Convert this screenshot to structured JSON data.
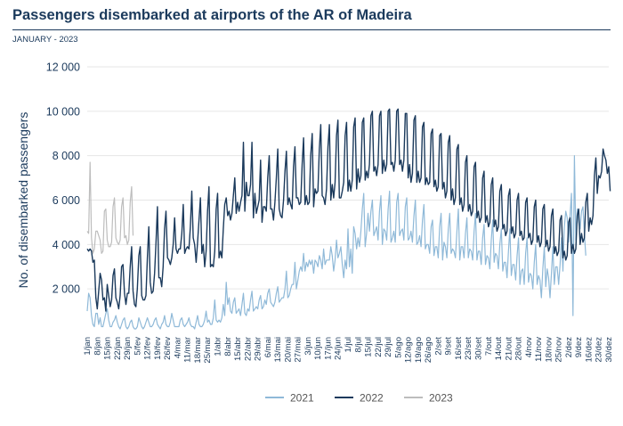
{
  "header": {
    "title": "Passengers disembarked at airports of the AR of Madeira",
    "subtitle": "JANUARY - 2023"
  },
  "colors": {
    "s2021": "#8fb9d8",
    "s2022": "#1b3a5c",
    "s2023": "#bdbdbd",
    "grid": "#e6e6e6",
    "text": "#1b3a5c"
  },
  "chart_data": {
    "type": "line",
    "title": "Passengers disembarked at airports of the AR of Madeira",
    "subtitle": "JANUARY - 2023",
    "xlabel": "",
    "ylabel": "No. of disembarked passengers",
    "ylim": [
      0,
      12000
    ],
    "yticks": [
      2000,
      4000,
      6000,
      8000,
      10000,
      12000
    ],
    "ytick_labels": [
      "2 000",
      "4 000",
      "6 000",
      "8 000",
      "10 000",
      "12 000"
    ],
    "grid": "horizontal",
    "legend": "bottom",
    "x_tick_labels": [
      "1/jan",
      "8/jan",
      "15/jan",
      "22/jan",
      "29/jan",
      "5/fev",
      "12/fev",
      "19/fev",
      "26/fev",
      "4/mar",
      "11/mar",
      "18/mar",
      "25/mar",
      "1/abr",
      "8/abr",
      "15/abr",
      "22/abr",
      "29/abr",
      "6/mai",
      "13/mai",
      "20/mai",
      "27/mai",
      "3/jun",
      "10/jun",
      "17/jun",
      "24/jun",
      "1/jul",
      "8/jul",
      "15/jul",
      "22/jul",
      "29/jul",
      "5/ago",
      "12/ago",
      "19/ago",
      "26/ago",
      "2/set",
      "9/set",
      "16/set",
      "23/set",
      "30/set",
      "7/out",
      "14/out",
      "21/out",
      "28/out",
      "4/nov",
      "11/nov",
      "18/nov",
      "25/nov",
      "2/dez",
      "9/dez",
      "16/dez",
      "23/dez",
      "30/dez"
    ],
    "x_note": "one point per day, day of year 1..365",
    "series": [
      {
        "name": "2021",
        "values": [
          1000,
          1800,
          1600,
          800,
          400,
          300,
          900,
          900,
          400,
          700,
          300,
          300,
          600,
          900,
          1100,
          600,
          300,
          300,
          500,
          600,
          800,
          500,
          300,
          200,
          400,
          600,
          700,
          300,
          200,
          300,
          500,
          600,
          300,
          200,
          200,
          300,
          700,
          500,
          300,
          200,
          300,
          500,
          700,
          500,
          300,
          300,
          400,
          600,
          700,
          400,
          300,
          200,
          400,
          500,
          800,
          400,
          300,
          300,
          500,
          900,
          600,
          300,
          300,
          300,
          300,
          600,
          700,
          400,
          300,
          400,
          500,
          700,
          400,
          300,
          300,
          200,
          500,
          800,
          400,
          300,
          300,
          400,
          600,
          1000,
          500,
          600,
          400,
          400,
          700,
          1500,
          600,
          500,
          600,
          500,
          700,
          1300,
          800,
          2300,
          1300,
          1600,
          1000,
          900,
          1400,
          1600,
          900,
          1000,
          1100,
          800,
          1300,
          1800,
          900,
          800,
          1100,
          1000,
          1500,
          1900,
          1000,
          1100,
          1200,
          1100,
          1500,
          1700,
          1100,
          1200,
          1500,
          1300,
          1800,
          2000,
          1400,
          1300,
          1200,
          1400,
          1800,
          2100,
          1400,
          1500,
          1600,
          1600,
          2000,
          2800,
          1600,
          1700,
          2000,
          2200,
          2200,
          3200,
          2000,
          2400,
          2800,
          3000,
          2800,
          3600,
          2800,
          3200,
          3000,
          3300,
          3100,
          3300,
          2700,
          3300,
          3200,
          3000,
          3500,
          3300,
          2900,
          3800,
          3100,
          3300,
          3300,
          3300,
          3900,
          3500,
          2800,
          3300,
          4200,
          3400,
          3600,
          3900,
          3100,
          2500,
          3300,
          2900,
          4700,
          3000,
          3800,
          2700,
          4800,
          4500,
          3800,
          4300,
          3900,
          4600,
          5600,
          6300,
          3900,
          4500,
          5400,
          4600,
          5500,
          6000,
          4400,
          4600,
          4800,
          4200,
          5500,
          6200,
          4000,
          4700,
          4600,
          4200,
          5600,
          6400,
          4100,
          4300,
          4600,
          4100,
          5900,
          6300,
          4400,
          4600,
          4700,
          4200,
          5700,
          6100,
          4200,
          4300,
          4600,
          4100,
          5300,
          6000,
          4000,
          4100,
          4400,
          3900,
          5100,
          5800,
          3800,
          4000,
          4000,
          3600,
          4800,
          5100,
          3500,
          3900,
          3900,
          3400,
          4800,
          5400,
          3300,
          4100,
          3900,
          3400,
          4700,
          5400,
          3600,
          3800,
          3700,
          3400,
          4600,
          5600,
          3300,
          3900,
          3900,
          3400,
          4500,
          5200,
          3400,
          3800,
          3700,
          3300,
          4600,
          5400,
          3300,
          3700,
          3700,
          3100,
          4300,
          4900,
          3100,
          3500,
          3400,
          2900,
          4200,
          5100,
          3200,
          3600,
          3500,
          2900,
          4000,
          4700,
          2800,
          3200,
          3200,
          2500,
          3700,
          4700,
          2600,
          3100,
          3100,
          2400,
          3500,
          4300,
          2200,
          2800,
          2900,
          2200,
          3600,
          4300,
          2300,
          2700,
          2600,
          2000,
          3200,
          4000,
          2200,
          2600,
          2400,
          1600,
          2900,
          3900,
          2100,
          2900,
          2500,
          1600,
          2700,
          3900,
          2200,
          3000,
          3000,
          2200,
          3100,
          4300,
          2800,
          4800,
          5500,
          5200,
          4100,
          5300,
          6300,
          800,
          8000,
          4200,
          5600,
          5000,
          4700,
          5500,
          5700,
          4500,
          3500
        ],
        "color": "#8fb9d8"
      },
      {
        "name": "2022",
        "values": [
          3800,
          3700,
          3800,
          3700,
          3200,
          3300,
          1600,
          1100,
          1900,
          2700,
          2400,
          1500,
          1600,
          1000,
          2200,
          1700,
          1200,
          1500,
          2600,
          2900,
          1600,
          1400,
          1100,
          1700,
          3000,
          3100,
          1800,
          1300,
          1800,
          1800,
          3000,
          3900,
          1900,
          1300,
          1200,
          2000,
          3500,
          3900,
          1700,
          1500,
          1500,
          1700,
          3400,
          4800,
          2300,
          1800,
          1900,
          2700,
          4100,
          5700,
          2500,
          2500,
          2100,
          3000,
          4700,
          5500,
          3400,
          3300,
          3100,
          3400,
          4000,
          5200,
          3800,
          3600,
          3800,
          3800,
          4500,
          5800,
          3600,
          3800,
          3900,
          3800,
          4800,
          6400,
          4300,
          4000,
          3200,
          4100,
          5100,
          6100,
          3600,
          4000,
          3000,
          3700,
          5500,
          6600,
          3000,
          3100,
          3000,
          3700,
          5600,
          6300,
          3400,
          3700,
          3400,
          4700,
          5800,
          6100,
          5300,
          5500,
          5100,
          5400,
          6200,
          7000,
          5400,
          5900,
          5500,
          5900,
          6200,
          8600,
          5500,
          6800,
          6200,
          6200,
          6700,
          8600,
          5200,
          6300,
          5400,
          5700,
          6000,
          7800,
          5000,
          5700,
          5700,
          5500,
          7000,
          8000,
          5600,
          5600,
          5100,
          5900,
          7000,
          8300,
          5600,
          5300,
          5200,
          6000,
          7300,
          8200,
          5800,
          6100,
          5800,
          5600,
          7500,
          8400,
          6100,
          6100,
          5800,
          5900,
          7600,
          8800,
          5800,
          6200,
          5800,
          5900,
          8000,
          9000,
          5700,
          6500,
          6300,
          6400,
          8300,
          9400,
          6200,
          6100,
          5800,
          6500,
          8400,
          9400,
          6000,
          6700,
          6100,
          6800,
          8900,
          9600,
          6100,
          6100,
          6400,
          6800,
          8900,
          9500,
          6400,
          6900,
          6400,
          6900,
          9300,
          9700,
          6500,
          7400,
          6800,
          7100,
          9500,
          9700,
          6900,
          7300,
          7000,
          7600,
          9800,
          10000,
          7300,
          7500,
          7100,
          7600,
          9800,
          10000,
          7200,
          7800,
          7300,
          7600,
          10000,
          10100,
          7600,
          7700,
          7300,
          7800,
          10000,
          10100,
          7600,
          7800,
          7300,
          7800,
          9900,
          9900,
          7000,
          7600,
          6800,
          7200,
          9600,
          9800,
          6800,
          7300,
          6800,
          7000,
          9300,
          9500,
          6700,
          7000,
          6700,
          6800,
          9000,
          9200,
          6600,
          6900,
          6400,
          6600,
          8900,
          9000,
          6500,
          6800,
          6100,
          6400,
          8600,
          8900,
          6000,
          6500,
          5800,
          6100,
          8300,
          8500,
          5800,
          6100,
          5500,
          5800,
          7700,
          8000,
          5500,
          5800,
          5300,
          5500,
          7500,
          7700,
          5200,
          5500,
          5000,
          5200,
          7000,
          7300,
          5000,
          5300,
          4800,
          5000,
          6700,
          7000,
          4800,
          5100,
          4600,
          4800,
          6400,
          6700,
          4700,
          4900,
          4400,
          4600,
          6200,
          6500,
          4500,
          4800,
          4300,
          4500,
          6000,
          6300,
          4400,
          4600,
          4200,
          4300,
          5900,
          6100,
          4300,
          4500,
          4000,
          4200,
          5700,
          6000,
          4100,
          4400,
          3900,
          4100,
          5600,
          5800,
          3900,
          4200,
          3700,
          3900,
          5300,
          5600,
          3600,
          3900,
          3500,
          3700,
          5100,
          5300,
          3400,
          3700,
          3300,
          3500,
          5000,
          5200,
          3600,
          4000,
          3600,
          3800,
          5300,
          5600,
          4000,
          4500,
          4100,
          4300,
          5900,
          6300,
          4600,
          5200,
          4900,
          5300,
          7100,
          7900,
          6300,
          7100,
          7000,
          7300,
          8300,
          8000,
          7800,
          7200,
          7500,
          6400
        ],
        "color": "#1b3a5c"
      },
      {
        "name": "2023",
        "values": [
          4600,
          4500,
          7700,
          4300,
          3600,
          3800,
          4600,
          4600,
          4400,
          4200,
          3600,
          3700,
          5500,
          5600,
          4200,
          3900,
          3900,
          4100,
          5700,
          6100,
          4300,
          4100,
          4000,
          4200,
          5700,
          6100,
          4300,
          4400,
          4000,
          4200,
          5900,
          6600,
          4400
        ],
        "color": "#bdbdbd"
      }
    ]
  }
}
